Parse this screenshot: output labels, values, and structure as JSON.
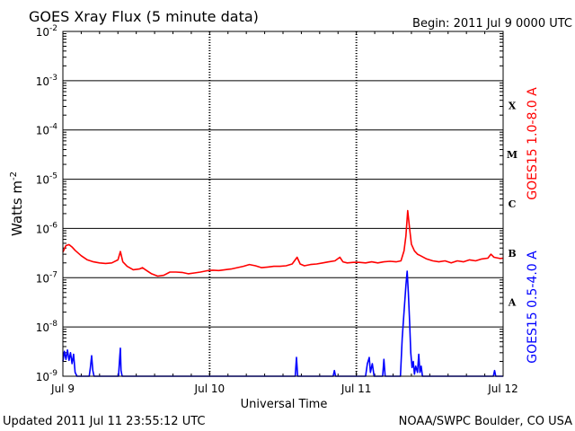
{
  "chart_data": {
    "type": "line",
    "title": "GOES Xray Flux (5 minute data)",
    "begin_text": "Begin:  2011 Jul 9 0000 UTC",
    "xlabel": "Universal Time",
    "ylabel": "Watts m",
    "ylabel_sup": "-2",
    "x_ticks": [
      "Jul 9",
      "Jul 10",
      "Jul 11",
      "Jul 12"
    ],
    "xlim": [
      0,
      72
    ],
    "x_units": "hours since 2011 Jul 9 0000 UTC",
    "y_scale": "log",
    "ylim": [
      1e-09,
      0.01
    ],
    "y_ticks": [
      {
        "base": "10",
        "exp": "-2"
      },
      {
        "base": "10",
        "exp": "-3"
      },
      {
        "base": "10",
        "exp": "-4"
      },
      {
        "base": "10",
        "exp": "-5"
      },
      {
        "base": "10",
        "exp": "-6"
      },
      {
        "base": "10",
        "exp": "-7"
      },
      {
        "base": "10",
        "exp": "-8"
      },
      {
        "base": "10",
        "exp": "-9"
      }
    ],
    "flare_classes": [
      "X",
      "M",
      "C",
      "B",
      "A"
    ],
    "grid": true,
    "series": [
      {
        "name": "GOES15 1.0-8.0 A",
        "color": "#ff0000",
        "points": [
          [
            0,
            3.3e-07
          ],
          [
            0.5,
            4.5e-07
          ],
          [
            1,
            4.7e-07
          ],
          [
            1.5,
            4.2e-07
          ],
          [
            2,
            3.6e-07
          ],
          [
            3,
            2.8e-07
          ],
          [
            4,
            2.3e-07
          ],
          [
            5,
            2.1e-07
          ],
          [
            6,
            2e-07
          ],
          [
            7,
            1.95e-07
          ],
          [
            8,
            2e-07
          ],
          [
            9,
            2.3e-07
          ],
          [
            9.4,
            3.4e-07
          ],
          [
            9.8,
            2.1e-07
          ],
          [
            10.5,
            1.7e-07
          ],
          [
            11.5,
            1.45e-07
          ],
          [
            12.5,
            1.5e-07
          ],
          [
            13,
            1.6e-07
          ],
          [
            13.5,
            1.45e-07
          ],
          [
            14.5,
            1.2e-07
          ],
          [
            15.5,
            1.08e-07
          ],
          [
            16.5,
            1.12e-07
          ],
          [
            17.5,
            1.3e-07
          ],
          [
            18.5,
            1.3e-07
          ],
          [
            19.5,
            1.28e-07
          ],
          [
            20.5,
            1.2e-07
          ],
          [
            21.5,
            1.25e-07
          ],
          [
            22.5,
            1.3e-07
          ],
          [
            23.5,
            1.38e-07
          ],
          [
            24.5,
            1.42e-07
          ],
          [
            25.5,
            1.4e-07
          ],
          [
            26.5,
            1.45e-07
          ],
          [
            27.5,
            1.5e-07
          ],
          [
            28.5,
            1.6e-07
          ],
          [
            29.5,
            1.7e-07
          ],
          [
            30.5,
            1.85e-07
          ],
          [
            31.5,
            1.75e-07
          ],
          [
            32.5,
            1.6e-07
          ],
          [
            33.5,
            1.65e-07
          ],
          [
            34.5,
            1.7e-07
          ],
          [
            35.5,
            1.7e-07
          ],
          [
            36.5,
            1.75e-07
          ],
          [
            37.5,
            1.9e-07
          ],
          [
            38.3,
            2.6e-07
          ],
          [
            38.8,
            1.9e-07
          ],
          [
            39.5,
            1.75e-07
          ],
          [
            40.5,
            1.85e-07
          ],
          [
            41.5,
            1.9e-07
          ],
          [
            42.5,
            2e-07
          ],
          [
            43.5,
            2.1e-07
          ],
          [
            44.5,
            2.2e-07
          ],
          [
            45.3,
            2.6e-07
          ],
          [
            45.8,
            2.1e-07
          ],
          [
            46.5,
            2e-07
          ],
          [
            47.5,
            2.05e-07
          ],
          [
            48.5,
            2.05e-07
          ],
          [
            49.5,
            2e-07
          ],
          [
            50.5,
            2.1e-07
          ],
          [
            51.5,
            2e-07
          ],
          [
            52.5,
            2.1e-07
          ],
          [
            53.5,
            2.15e-07
          ],
          [
            54.5,
            2.1e-07
          ],
          [
            55.3,
            2.2e-07
          ],
          [
            55.8,
            3.5e-07
          ],
          [
            56.1,
            7e-07
          ],
          [
            56.4,
            2.3e-06
          ],
          [
            56.7,
            1e-06
          ],
          [
            57.0,
            4.8e-07
          ],
          [
            57.5,
            3.5e-07
          ],
          [
            58,
            3e-07
          ],
          [
            58.5,
            2.8e-07
          ],
          [
            59.5,
            2.4e-07
          ],
          [
            60.5,
            2.2e-07
          ],
          [
            61.5,
            2.1e-07
          ],
          [
            62.5,
            2.2e-07
          ],
          [
            63.5,
            2e-07
          ],
          [
            64.5,
            2.2e-07
          ],
          [
            65.5,
            2.1e-07
          ],
          [
            66.5,
            2.3e-07
          ],
          [
            67.5,
            2.2e-07
          ],
          [
            68.5,
            2.4e-07
          ],
          [
            69.5,
            2.5e-07
          ],
          [
            70,
            3e-07
          ],
          [
            70.5,
            2.6e-07
          ],
          [
            71.5,
            2.45e-07
          ],
          [
            72,
            2.5e-07
          ]
        ]
      },
      {
        "name": "GOES15 0.5-4.0 A",
        "color": "#0000ff",
        "points": [
          [
            0,
            2e-09
          ],
          [
            0.25,
            3.2e-09
          ],
          [
            0.5,
            2.2e-09
          ],
          [
            0.75,
            3.4e-09
          ],
          [
            1,
            2.1e-09
          ],
          [
            1.25,
            3e-09
          ],
          [
            1.5,
            1.8e-09
          ],
          [
            1.75,
            2.8e-09
          ],
          [
            2,
            1.2e-09
          ],
          [
            2.3,
            1e-09
          ],
          [
            4.3,
            1e-09
          ],
          [
            4.5,
            1.5e-09
          ],
          [
            4.7,
            2.6e-09
          ],
          [
            4.9,
            1.3e-09
          ],
          [
            5.1,
            1e-09
          ],
          [
            9.1,
            1e-09
          ],
          [
            9.3,
            2.5e-09
          ],
          [
            9.4,
            3.7e-09
          ],
          [
            9.5,
            1.3e-09
          ],
          [
            9.7,
            1e-09
          ],
          [
            37.5,
            1e-09
          ],
          [
            38.0,
            1e-09
          ],
          [
            38.2,
            2.4e-09
          ],
          [
            38.4,
            1e-09
          ],
          [
            44.2,
            1e-09
          ],
          [
            44.4,
            1.3e-09
          ],
          [
            44.6,
            1e-09
          ],
          [
            49.5,
            1e-09
          ],
          [
            49.8,
            1.8e-09
          ],
          [
            50.1,
            2.4e-09
          ],
          [
            50.3,
            1.2e-09
          ],
          [
            50.6,
            1.8e-09
          ],
          [
            50.9,
            1e-09
          ],
          [
            52.3,
            1e-09
          ],
          [
            52.5,
            2.2e-09
          ],
          [
            52.7,
            1e-09
          ],
          [
            55.2,
            1e-09
          ],
          [
            55.5,
            6e-09
          ],
          [
            55.8,
            2e-08
          ],
          [
            56.1,
            7e-08
          ],
          [
            56.3,
            1.35e-07
          ],
          [
            56.5,
            5e-08
          ],
          [
            56.7,
            1.3e-08
          ],
          [
            56.9,
            3e-09
          ],
          [
            57.1,
            1.5e-09
          ],
          [
            57.3,
            2e-09
          ],
          [
            57.5,
            1.1e-09
          ],
          [
            57.7,
            1.6e-09
          ],
          [
            58.0,
            1.2e-09
          ],
          [
            58.2,
            2.8e-09
          ],
          [
            58.4,
            1.2e-09
          ],
          [
            58.6,
            1.6e-09
          ],
          [
            58.8,
            1e-09
          ],
          [
            70.4,
            1e-09
          ],
          [
            70.6,
            1.3e-09
          ],
          [
            70.8,
            1e-09
          ],
          [
            72,
            1e-09
          ]
        ]
      }
    ]
  },
  "footer": {
    "updated": "Updated 2011 Jul 11 23:55:12 UTC",
    "source": "NOAA/SWPC Boulder, CO USA"
  }
}
